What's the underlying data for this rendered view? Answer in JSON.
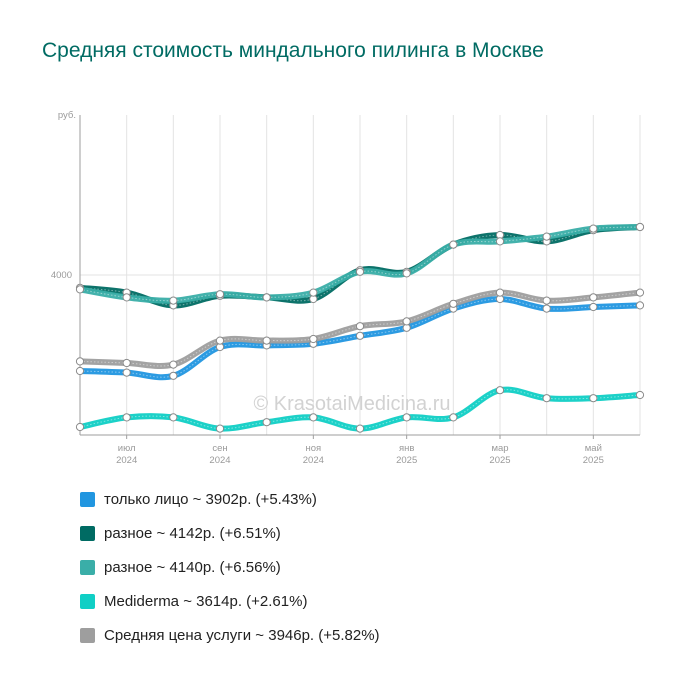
{
  "title": "Средняя стоимость миндального пилинга в Москве",
  "watermark": "© KrasotaiMedicina.ru",
  "chart_data": {
    "type": "line",
    "title": "Средняя стоимость миндального пилинга в Москве",
    "ylabel": "руб.",
    "ylim": [
      3000,
      5000
    ],
    "yticks": [
      4000
    ],
    "x": [
      "2024-05",
      "2024-06",
      "2024-07",
      "2024-08",
      "2024-09",
      "2024-10",
      "2024-11",
      "2024-12",
      "2025-01",
      "2025-02",
      "2025-03",
      "2025-04",
      "2025-05"
    ],
    "xtick_labels": [
      {
        "x": "2024-06",
        "line1": "июл",
        "line2": "2024"
      },
      {
        "x": "2024-08",
        "line1": "сен",
        "line2": "2024"
      },
      {
        "x": "2024-10",
        "line1": "ноя",
        "line2": "2024"
      },
      {
        "x": "2024-12",
        "line1": "янв",
        "line2": "2025"
      },
      {
        "x": "2025-02",
        "line1": "мар",
        "line2": "2025"
      },
      {
        "x": "2025-04",
        "line1": "май",
        "line2": "2025"
      }
    ],
    "grid": true,
    "legend_position": "bottom",
    "series": [
      {
        "name": "только лицо",
        "color": "#2196e0",
        "legend": "только лицо ~ 3902р. (+5.43%)",
        "values": [
          3400,
          3390,
          3370,
          3550,
          3560,
          3570,
          3620,
          3670,
          3790,
          3850,
          3790,
          3800,
          3810
        ]
      },
      {
        "name": "разное",
        "color": "#006b63",
        "legend": "разное ~ 4142р. (+6.51%)",
        "values": [
          3920,
          3890,
          3810,
          3870,
          3860,
          3850,
          4030,
          4020,
          4190,
          4250,
          4210,
          4280,
          4300
        ]
      },
      {
        "name": "разное",
        "color": "#3aaea8",
        "legend": "разное ~ 4140р. (+6.56%)",
        "values": [
          3910,
          3860,
          3840,
          3880,
          3860,
          3890,
          4020,
          4010,
          4190,
          4210,
          4240,
          4290,
          4300
        ]
      },
      {
        "name": "Mediderma",
        "color": "#10cfc5",
        "legend": "Mediderma ~ 3614р. (+2.61%)",
        "values": [
          3050,
          3110,
          3110,
          3040,
          3080,
          3110,
          3040,
          3110,
          3110,
          3280,
          3230,
          3230,
          3250
        ]
      },
      {
        "name": "Средняя цена услуги",
        "color": "#9e9e9e",
        "legend": "Средняя цена услуги ~ 3946р. (+5.82%)",
        "values": [
          3460,
          3450,
          3440,
          3590,
          3590,
          3600,
          3680,
          3710,
          3820,
          3890,
          3840,
          3860,
          3890
        ]
      }
    ]
  }
}
